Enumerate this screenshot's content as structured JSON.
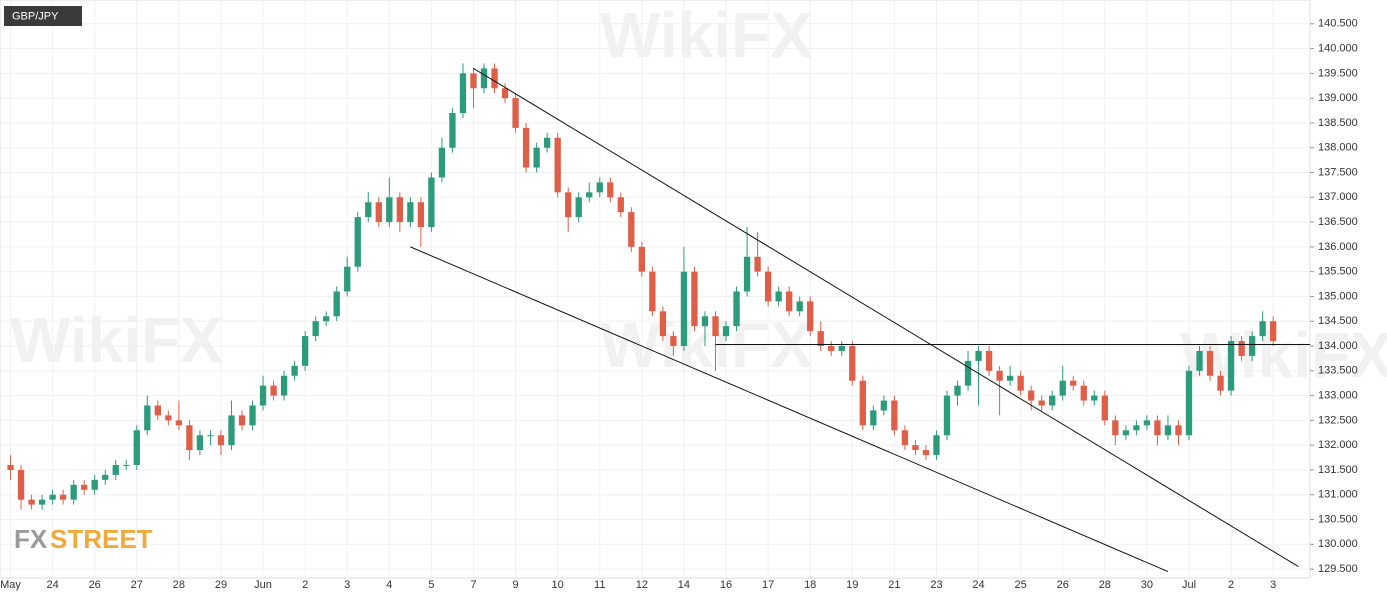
{
  "chart_data": {
    "type": "candlestick",
    "title": "GBP/JPY",
    "watermark": "WikiFX",
    "logo_prefix": "FX",
    "logo_suffix": "STREET",
    "up_color": "#2b9b7b",
    "down_color": "#df5e48",
    "line_color": "#111111",
    "grid": true,
    "categories": [
      "May",
      null,
      null,
      null,
      "24",
      null,
      null,
      null,
      "26",
      null,
      null,
      null,
      "27",
      null,
      null,
      null,
      "28",
      null,
      null,
      null,
      "29",
      null,
      null,
      null,
      "Jun",
      null,
      null,
      null,
      "2",
      null,
      null,
      null,
      "3",
      null,
      null,
      null,
      "4",
      null,
      null,
      null,
      "5",
      null,
      null,
      null,
      "7",
      null,
      null,
      null,
      "9",
      null,
      null,
      null,
      "10",
      null,
      null,
      null,
      "11",
      null,
      null,
      null,
      "12",
      null,
      null,
      null,
      "14",
      null,
      null,
      null,
      "16",
      null,
      null,
      null,
      "17",
      null,
      null,
      null,
      "18",
      null,
      null,
      null,
      "19",
      null,
      null,
      null,
      "21",
      null,
      null,
      null,
      "23",
      null,
      null,
      null,
      "24",
      null,
      null,
      null,
      "25",
      null,
      null,
      null,
      "26",
      null,
      null,
      null,
      "28",
      null,
      null,
      null,
      "30",
      null,
      null,
      null,
      "Jul",
      null,
      null,
      null,
      "2",
      null,
      null,
      null,
      "3"
    ],
    "open": [
      131.6,
      131.5,
      130.9,
      130.8,
      130.9,
      131.0,
      130.9,
      131.2,
      131.1,
      131.3,
      131.4,
      131.6,
      131.6,
      132.3,
      132.8,
      132.6,
      132.5,
      132.4,
      131.9,
      132.2,
      132.2,
      132.0,
      132.6,
      132.4,
      132.8,
      133.2,
      133.0,
      133.4,
      133.6,
      134.2,
      134.5,
      134.6,
      135.1,
      135.6,
      136.6,
      136.9,
      136.5,
      137.0,
      136.5,
      136.9,
      136.4,
      137.4,
      138.0,
      138.7,
      139.5,
      139.2,
      139.6,
      139.2,
      139.0,
      138.4,
      137.6,
      138.0,
      138.2,
      137.1,
      136.6,
      137.0,
      137.1,
      137.3,
      137.0,
      136.7,
      136.0,
      135.5,
      134.7,
      134.2,
      134.0,
      135.5,
      134.4,
      134.6,
      134.2,
      134.4,
      135.1,
      135.8,
      135.5,
      134.9,
      135.1,
      134.7,
      134.9,
      134.3,
      134.0,
      133.9,
      134.0,
      133.3,
      132.4,
      132.7,
      132.9,
      132.3,
      132.0,
      131.9,
      131.8,
      132.2,
      133.0,
      133.2,
      133.7,
      133.9,
      133.5,
      133.3,
      133.4,
      133.1,
      132.9,
      132.8,
      133.0,
      133.3,
      133.2,
      132.9,
      133.0,
      132.5,
      132.2,
      132.3,
      132.4,
      132.5,
      132.2,
      132.4,
      132.2,
      133.5,
      133.9,
      133.4,
      133.1,
      134.1,
      133.8,
      134.2,
      134.5
    ],
    "high": [
      131.8,
      131.6,
      131.0,
      131.0,
      131.1,
      131.1,
      131.3,
      131.3,
      131.4,
      131.5,
      131.7,
      131.7,
      132.4,
      133.0,
      132.9,
      132.7,
      132.9,
      132.5,
      132.3,
      132.3,
      132.3,
      132.9,
      132.7,
      132.9,
      133.4,
      133.3,
      133.5,
      133.7,
      134.3,
      134.6,
      134.7,
      135.2,
      135.8,
      136.7,
      137.1,
      137.0,
      137.4,
      137.1,
      137.0,
      137.0,
      137.5,
      138.2,
      138.8,
      139.7,
      139.6,
      139.7,
      139.7,
      139.3,
      139.1,
      138.5,
      138.1,
      138.3,
      138.3,
      137.2,
      137.1,
      137.3,
      137.4,
      137.4,
      137.1,
      136.8,
      136.1,
      135.6,
      134.8,
      134.3,
      136.0,
      135.6,
      134.7,
      134.7,
      134.5,
      135.2,
      136.4,
      136.3,
      135.6,
      135.2,
      135.2,
      135.0,
      135.0,
      134.5,
      134.1,
      134.1,
      134.1,
      133.4,
      132.8,
      133.0,
      133.0,
      132.4,
      132.1,
      132.0,
      132.3,
      133.1,
      133.3,
      133.9,
      134.0,
      134.0,
      133.6,
      133.6,
      133.5,
      133.2,
      133.0,
      133.1,
      133.6,
      133.4,
      133.3,
      133.1,
      133.1,
      132.6,
      132.4,
      132.5,
      132.6,
      132.6,
      132.6,
      132.5,
      133.6,
      134.0,
      134.0,
      133.5,
      134.2,
      134.2,
      134.3,
      134.7,
      134.6
    ],
    "low": [
      131.3,
      130.7,
      130.7,
      130.7,
      130.8,
      130.8,
      130.8,
      131.0,
      131.0,
      131.2,
      131.3,
      131.5,
      131.5,
      132.2,
      132.5,
      132.4,
      132.3,
      131.7,
      131.8,
      132.0,
      131.8,
      131.9,
      132.3,
      132.3,
      132.7,
      132.9,
      132.9,
      133.3,
      133.5,
      134.1,
      134.4,
      134.5,
      135.0,
      135.5,
      136.5,
      136.4,
      136.4,
      136.3,
      136.4,
      136.0,
      136.3,
      137.3,
      137.9,
      138.6,
      138.8,
      139.1,
      139.1,
      138.9,
      138.3,
      137.5,
      137.5,
      137.9,
      137.0,
      136.3,
      136.5,
      136.9,
      137.0,
      136.9,
      136.6,
      135.9,
      135.4,
      134.6,
      134.1,
      133.8,
      133.9,
      134.3,
      134.0,
      133.5,
      134.1,
      134.3,
      135.0,
      135.4,
      134.8,
      134.8,
      134.6,
      134.6,
      134.2,
      133.9,
      133.8,
      133.8,
      133.2,
      132.3,
      132.3,
      132.6,
      132.2,
      131.9,
      131.8,
      131.7,
      131.7,
      132.1,
      132.8,
      133.1,
      132.8,
      133.4,
      132.6,
      133.2,
      133.0,
      132.7,
      132.7,
      132.7,
      132.9,
      133.1,
      132.8,
      132.8,
      132.4,
      132.0,
      132.1,
      132.2,
      132.3,
      132.0,
      132.1,
      132.0,
      132.1,
      133.4,
      133.3,
      133.0,
      133.0,
      133.7,
      133.7,
      134.1,
      134.0
    ],
    "close": [
      131.5,
      130.9,
      130.8,
      130.9,
      131.0,
      130.9,
      131.2,
      131.1,
      131.3,
      131.4,
      131.6,
      131.6,
      132.3,
      132.8,
      132.6,
      132.5,
      132.4,
      131.9,
      132.2,
      132.2,
      132.0,
      132.6,
      132.4,
      132.8,
      133.2,
      133.0,
      133.4,
      133.6,
      134.2,
      134.5,
      134.6,
      135.1,
      135.6,
      136.6,
      136.9,
      136.5,
      137.0,
      136.5,
      136.9,
      136.4,
      137.4,
      138.0,
      138.7,
      139.5,
      139.2,
      139.6,
      139.2,
      139.0,
      138.4,
      137.6,
      138.0,
      138.2,
      137.1,
      136.6,
      137.0,
      137.1,
      137.3,
      137.0,
      136.7,
      136.0,
      135.5,
      134.7,
      134.2,
      134.0,
      135.5,
      134.4,
      134.6,
      134.2,
      134.4,
      135.1,
      135.8,
      135.5,
      134.9,
      135.1,
      134.7,
      134.9,
      134.3,
      134.0,
      133.9,
      134.0,
      133.3,
      132.4,
      132.7,
      132.9,
      132.3,
      132.0,
      131.9,
      131.8,
      132.2,
      133.0,
      133.2,
      133.7,
      133.9,
      133.5,
      133.3,
      133.4,
      133.1,
      132.9,
      132.8,
      133.0,
      133.3,
      133.2,
      132.9,
      133.0,
      132.5,
      132.2,
      132.3,
      132.4,
      132.5,
      132.2,
      132.4,
      132.2,
      133.5,
      133.9,
      133.4,
      133.1,
      134.1,
      133.8,
      134.2,
      134.5,
      134.1
    ],
    "trendlines": [
      {
        "x": [
          44,
          122.4
        ],
        "y": [
          139.6,
          129.55
        ]
      },
      {
        "x": [
          38,
          110
        ],
        "y": [
          136.0,
          129.45
        ]
      },
      {
        "x": [
          67,
          123.5
        ],
        "y": [
          134.03,
          134.03
        ]
      }
    ],
    "xlim": [
      -1,
      123.5
    ],
    "ylim": [
      129.32,
      140.98
    ],
    "yticks": [
      {
        "value": 129.5,
        "label": "129.500"
      },
      {
        "value": 130,
        "label": "130.000"
      },
      {
        "value": 130.5,
        "label": "130.500"
      },
      {
        "value": 131,
        "label": "131.000"
      },
      {
        "value": 131.5,
        "label": "131.500"
      },
      {
        "value": 132,
        "label": "132.000"
      },
      {
        "value": 132.5,
        "label": "132.500"
      },
      {
        "value": 133,
        "label": "133.000"
      },
      {
        "value": 133.5,
        "label": "133.500"
      },
      {
        "value": 134,
        "label": "134.000"
      },
      {
        "value": 134.5,
        "label": "134.500"
      },
      {
        "value": 135,
        "label": "135.000"
      },
      {
        "value": 135.5,
        "label": "135.500"
      },
      {
        "value": 136,
        "label": "136.000"
      },
      {
        "value": 136.5,
        "label": "136.500"
      },
      {
        "value": 137,
        "label": "137.000"
      },
      {
        "value": 137.5,
        "label": "137.500"
      },
      {
        "value": 138,
        "label": "138.000"
      },
      {
        "value": 138.5,
        "label": "138.500"
      },
      {
        "value": 139,
        "label": "139.000"
      },
      {
        "value": 139.5,
        "label": "139.500"
      },
      {
        "value": 140,
        "label": "140.000"
      },
      {
        "value": 140.5,
        "label": "140.500"
      }
    ]
  }
}
